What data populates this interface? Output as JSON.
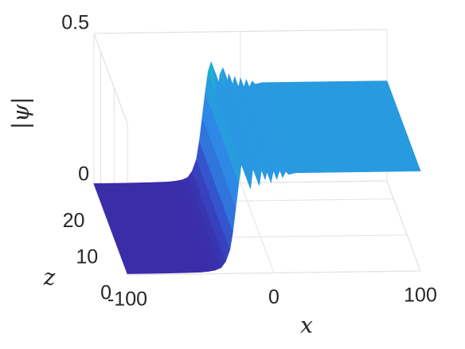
{
  "chart_data": {
    "type": "surface",
    "x": [
      -100,
      -80,
      -60,
      -50,
      -45,
      -40,
      -36,
      -33,
      -30,
      -28,
      -26,
      -24,
      -22,
      -20,
      -18,
      -16,
      -14,
      -12,
      -10,
      -8,
      -6,
      -4,
      -2,
      0,
      2,
      4,
      6,
      8,
      10,
      15,
      20,
      40,
      60,
      80,
      100
    ],
    "values": [
      0.004,
      0.004,
      0.005,
      0.006,
      0.008,
      0.012,
      0.02,
      0.04,
      0.08,
      0.14,
      0.22,
      0.3,
      0.37,
      0.4,
      0.37,
      0.28,
      0.36,
      0.38,
      0.29,
      0.36,
      0.31,
      0.35,
      0.3,
      0.345,
      0.31,
      0.34,
      0.315,
      0.335,
      0.325,
      0.33,
      0.33,
      0.33,
      0.33,
      0.33,
      0.33
    ],
    "xlim": [
      -100,
      100
    ],
    "xticks": [
      -100,
      0,
      100
    ],
    "zlim": [
      0,
      25
    ],
    "zticks": [
      0,
      10,
      20
    ],
    "vlim": [
      0,
      0.5
    ],
    "vticks": [
      0,
      0.5
    ],
    "xlabel": "x",
    "zlabel": "z",
    "vlabel": "|ψ|",
    "colors": [
      "#3b2aa6",
      "#3550cc",
      "#2f7ee0",
      "#2d8fe8",
      "#1db5cc"
    ],
    "grid": true
  }
}
